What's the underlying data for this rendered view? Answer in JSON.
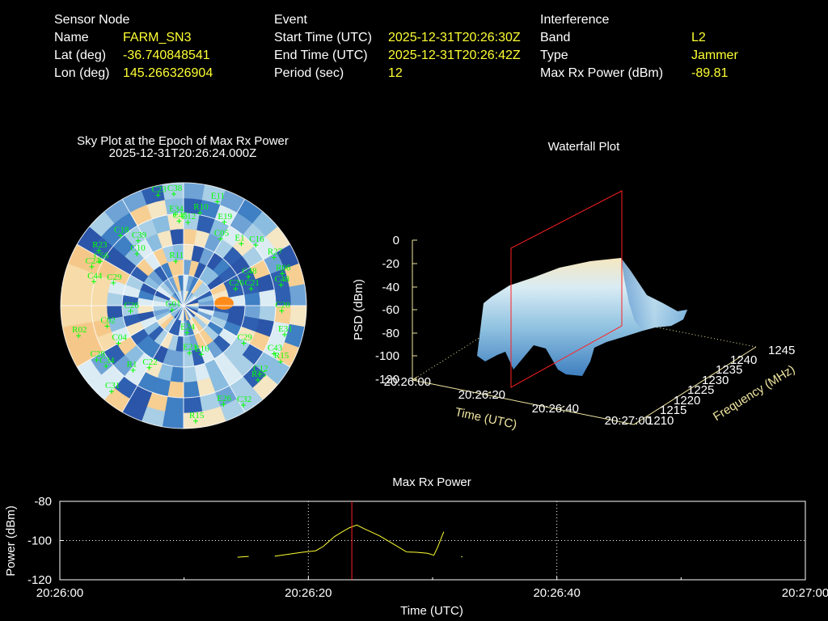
{
  "header": {
    "sensor": {
      "title": "Sensor Node",
      "rows": [
        {
          "label": "Name",
          "value": "FARM_SN3"
        },
        {
          "label": "Lat (deg)",
          "value": "-36.740848541"
        },
        {
          "label": "Lon (deg)",
          "value": "145.266326904"
        }
      ]
    },
    "event": {
      "title": "Event",
      "rows": [
        {
          "label": "Start Time (UTC)",
          "value": "2025-12-31T20:26:30Z"
        },
        {
          "label": "End Time (UTC)",
          "value": "2025-12-31T20:26:42Z"
        },
        {
          "label": "Period (sec)",
          "value": "12"
        }
      ]
    },
    "interference": {
      "title": "Interference",
      "rows": [
        {
          "label": "Band",
          "value": "L2"
        },
        {
          "label": "Type",
          "value": "Jammer"
        },
        {
          "label": "Max Rx Power (dBm)",
          "value": "-89.81"
        }
      ]
    }
  },
  "skyplot": {
    "title": "Sky Plot at the Epoch of Max Rx Power",
    "subtitle": "2025-12-31T20:26:24.000Z"
  },
  "waterfall": {
    "title": "Waterfall Plot",
    "zlabel": "PSD (dBm)",
    "xlabel": "Time (UTC)",
    "ylabel": "Frequency (MHz)",
    "z_ticks": [
      "0",
      "-20",
      "-40",
      "-60",
      "-80",
      "-100",
      "-120"
    ],
    "x_ticks": [
      "20:26:00",
      "20:26:20",
      "20:26:40",
      "20:27:00"
    ],
    "y_ticks": [
      "1210",
      "1215",
      "1220",
      "1225",
      "1230",
      "1235",
      "1240",
      "1245"
    ]
  },
  "chart_data": [
    {
      "type": "scatter",
      "name": "sky-plot",
      "satellites": [
        {
          "id": "C38",
          "az": 355,
          "el": 82
        },
        {
          "id": "C23",
          "az": 347,
          "el": 83
        },
        {
          "id": "E11",
          "az": 18,
          "el": 80
        },
        {
          "id": "C18",
          "az": 318,
          "el": 69
        },
        {
          "id": "E34",
          "az": 355,
          "el": 67
        },
        {
          "id": "R10",
          "az": 10,
          "el": 69
        },
        {
          "id": "E19",
          "az": 26,
          "el": 68
        },
        {
          "id": "C45",
          "az": 357,
          "el": 62
        },
        {
          "id": "E12",
          "az": 3,
          "el": 61
        },
        {
          "id": "C05",
          "az": 29,
          "el": 56
        },
        {
          "id": "E1",
          "az": 43,
          "el": 62
        },
        {
          "id": "C16",
          "az": 50,
          "el": 69
        },
        {
          "id": "R27",
          "az": 62,
          "el": 75
        },
        {
          "id": "R23",
          "az": 303,
          "el": 74
        },
        {
          "id": "C39",
          "az": 325,
          "el": 58
        },
        {
          "id": "C10",
          "az": 318,
          "el": 51
        },
        {
          "id": "C56",
          "az": 298,
          "el": 69
        },
        {
          "id": "C24",
          "az": 293,
          "el": 73
        },
        {
          "id": "C44",
          "az": 285,
          "el": 68
        },
        {
          "id": "C29",
          "az": 288,
          "el": 54
        },
        {
          "id": "R11",
          "az": 350,
          "el": 33
        },
        {
          "id": "C48",
          "az": 66,
          "el": 52
        },
        {
          "id": "R06",
          "az": 72,
          "el": 76
        },
        {
          "id": "C48",
          "az": 78,
          "el": 73
        },
        {
          "id": "C21",
          "az": 76,
          "el": 51
        },
        {
          "id": "C26",
          "az": 72,
          "el": 40
        },
        {
          "id": "C20",
          "az": 93,
          "el": 72
        },
        {
          "id": "C26",
          "az": 264,
          "el": 39
        },
        {
          "id": "C02",
          "az": 255,
          "el": 58
        },
        {
          "id": "C04",
          "az": 240,
          "el": 55
        },
        {
          "id": "G01",
          "az": 250,
          "el": 9
        },
        {
          "id": "E24",
          "az": 173,
          "el": 20
        },
        {
          "id": "E31",
          "az": 106,
          "el": 77
        },
        {
          "id": "C29",
          "az": 122,
          "el": 52
        },
        {
          "id": "E21",
          "az": 173,
          "el": 35
        },
        {
          "id": "E16",
          "az": 160,
          "el": 38
        },
        {
          "id": "C43",
          "az": 118,
          "el": 75
        },
        {
          "id": "R15",
          "az": 120,
          "el": 82
        },
        {
          "id": "R02",
          "az": 254,
          "el": 80
        },
        {
          "id": "C28",
          "az": 238,
          "el": 75
        },
        {
          "id": "R1",
          "az": 218,
          "el": 60
        },
        {
          "id": "C22",
          "az": 209,
          "el": 52
        },
        {
          "id": "C34",
          "az": 232,
          "el": 72
        },
        {
          "id": "C12",
          "az": 132,
          "el": 75
        },
        {
          "id": "R15",
          "az": 135,
          "el": 77
        },
        {
          "id": "C31",
          "az": 220,
          "el": 82
        },
        {
          "id": "E26",
          "az": 158,
          "el": 78
        },
        {
          "id": "C32",
          "az": 149,
          "el": 85
        },
        {
          "id": "R15",
          "az": 174,
          "el": 85
        }
      ]
    },
    {
      "type": "area",
      "name": "waterfall-3d",
      "x_range": [
        "20:26:00",
        "20:27:00"
      ],
      "freq_range_mhz": [
        1210,
        1245
      ],
      "psd_range_dbm": [
        -120,
        0
      ],
      "marker_time": "20:26:24"
    },
    {
      "type": "line",
      "name": "max-rx-power",
      "title": "Max Rx Power",
      "xlabel": "Time (UTC)",
      "ylabel": "Power (dBm)",
      "x_ticks": [
        "20:26:00",
        "20:26:20",
        "20:26:40",
        "20:27:00"
      ],
      "y_ticks": [
        "-80",
        "-100",
        "-120"
      ],
      "xlim_sec": [
        0,
        60
      ],
      "ylim": [
        -120,
        -80
      ],
      "marker_sec": 23.5,
      "segments": [
        [
          [
            14.3,
            -108.5
          ],
          [
            15.2,
            -108.1
          ]
        ],
        [
          [
            17.3,
            -108.0
          ],
          [
            19.5,
            -106.0
          ],
          [
            20.6,
            -105.2
          ],
          [
            21.2,
            -103.0
          ],
          [
            22.1,
            -98.0
          ],
          [
            22.8,
            -95.3
          ],
          [
            23.3,
            -93.5
          ],
          [
            23.9,
            -92.1
          ],
          [
            24.5,
            -94.0
          ],
          [
            25.7,
            -97.5
          ],
          [
            26.9,
            -102.0
          ],
          [
            27.9,
            -105.8
          ],
          [
            28.7,
            -106.0
          ],
          [
            29.6,
            -106.5
          ],
          [
            30.1,
            -107.5
          ],
          [
            30.4,
            -103.5
          ],
          [
            30.9,
            -95.5
          ]
        ],
        [
          [
            32.3,
            -108.2
          ],
          [
            32.4,
            -108.4
          ]
        ]
      ]
    }
  ]
}
